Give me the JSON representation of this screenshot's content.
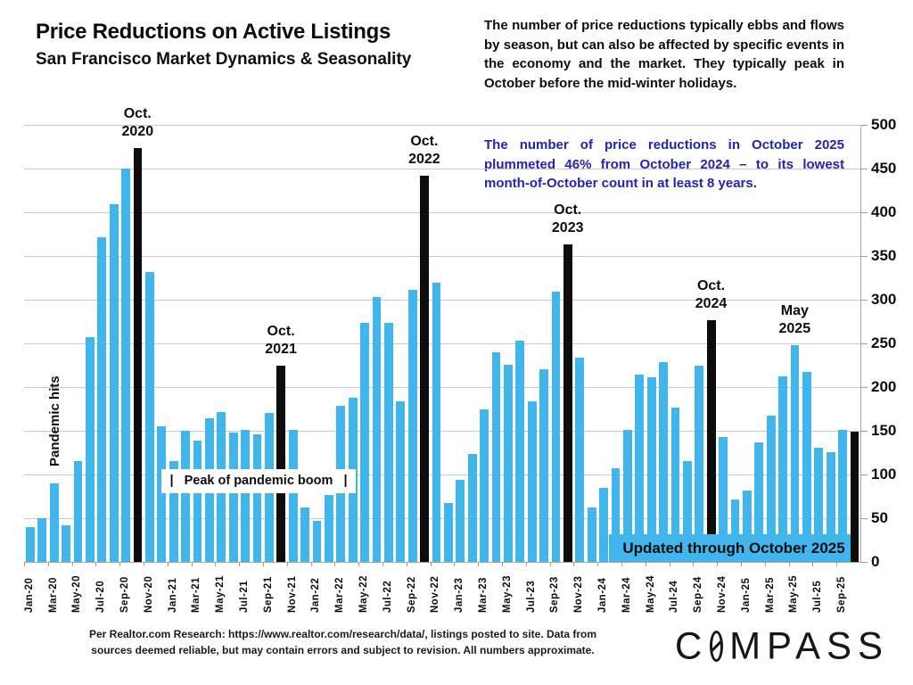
{
  "header": {
    "title": "Price Reductions on Active Listings",
    "subtitle": "San Francisco Market Dynamics & Seasonality"
  },
  "commentary": {
    "paragraph_black": "The number of price reductions typically ebbs and flows by season, but can also be affected by specific events in the economy and the market. They typically peak in October before the mid-winter holidays.",
    "paragraph_blue": "The number of price reductions in October 2025 plummeted 46% from October 2024 – to its lowest month-of-October count in at least 8 years."
  },
  "chart_data": {
    "type": "bar",
    "title": "Price Reductions on Active Listings",
    "subtitle": "San Francisco Market Dynamics & Seasonality",
    "ylabel": "",
    "xlabel": "",
    "ylim": [
      0,
      500
    ],
    "ytick_step": 50,
    "y_axis_side": "right",
    "xtick_every": 2,
    "grid": true,
    "x": [
      "Jan-20",
      "Feb-20",
      "Mar-20",
      "Apr-20",
      "May-20",
      "Jun-20",
      "Jul-20",
      "Aug-20",
      "Sep-20",
      "Oct-20",
      "Nov-20",
      "Dec-20",
      "Jan-21",
      "Feb-21",
      "Mar-21",
      "Apr-21",
      "May-21",
      "Jun-21",
      "Jul-21",
      "Aug-21",
      "Sep-21",
      "Oct-21",
      "Nov-21",
      "Dec-21",
      "Jan-22",
      "Feb-22",
      "Mar-22",
      "Apr-22",
      "May-22",
      "Jun-22",
      "Jul-22",
      "Aug-22",
      "Sep-22",
      "Oct-22",
      "Nov-22",
      "Dec-22",
      "Jan-23",
      "Feb-23",
      "Mar-23",
      "Apr-23",
      "May-23",
      "Jun-23",
      "Jul-23",
      "Aug-23",
      "Sep-23",
      "Oct-23",
      "Nov-23",
      "Dec-23",
      "Jan-24",
      "Feb-24",
      "Mar-24",
      "Apr-24",
      "May-24",
      "Jun-24",
      "Jul-24",
      "Aug-24",
      "Sep-24",
      "Oct-24",
      "Nov-24",
      "Dec-24",
      "Jan-25",
      "Feb-25",
      "Mar-25",
      "Apr-25",
      "May-25",
      "Jun-25",
      "Jul-25",
      "Aug-25",
      "Sep-25",
      "Oct-25"
    ],
    "values": [
      40,
      50,
      90,
      42,
      115,
      257,
      371,
      409,
      450,
      473,
      332,
      155,
      115,
      150,
      139,
      164,
      171,
      148,
      151,
      146,
      170,
      224,
      151,
      62,
      47,
      77,
      179,
      188,
      273,
      303,
      273,
      184,
      311,
      442,
      319,
      67,
      94,
      123,
      174,
      240,
      226,
      253,
      184,
      220,
      309,
      363,
      234,
      62,
      85,
      107,
      151,
      214,
      211,
      229,
      177,
      115,
      224,
      277,
      143,
      71,
      82,
      137,
      167,
      212,
      248,
      217,
      131,
      126,
      151,
      149
    ],
    "highlight_indices": [
      9,
      21,
      33,
      45,
      57,
      69
    ],
    "annotations": [
      {
        "line1": "Oct.",
        "line2": "2020",
        "index": 9
      },
      {
        "line1": "Oct.",
        "line2": "2021",
        "index": 21
      },
      {
        "line1": "Oct.",
        "line2": "2022",
        "index": 33
      },
      {
        "line1": "Oct.",
        "line2": "2023",
        "index": 45
      },
      {
        "line1": "Oct.",
        "line2": "2024",
        "index": 57
      },
      {
        "line1": "May",
        "line2": "2025",
        "index": 64
      }
    ],
    "labels": {
      "pandemic_hits": "Pandemic hits",
      "peak_of_boom": "|   Peak of pandemic boom   |"
    }
  },
  "badge": {
    "text": "Updated through October 2025"
  },
  "footer": {
    "line1": "Per Realtor.com Research:  https://www.realtor.com/research/data/, listings posted to site. Data from",
    "line2": "sources deemed reliable, but may contain errors and subject to revision. All numbers approximate."
  },
  "logo": {
    "text_left": "C",
    "text_right": "MPASS"
  },
  "colors": {
    "bar": "#41b6ec",
    "bar_highlight": "#0c0c0c",
    "blue_text": "#2323b0",
    "badge_bg": "#41b6ec",
    "grid": "#c9c9c9"
  }
}
